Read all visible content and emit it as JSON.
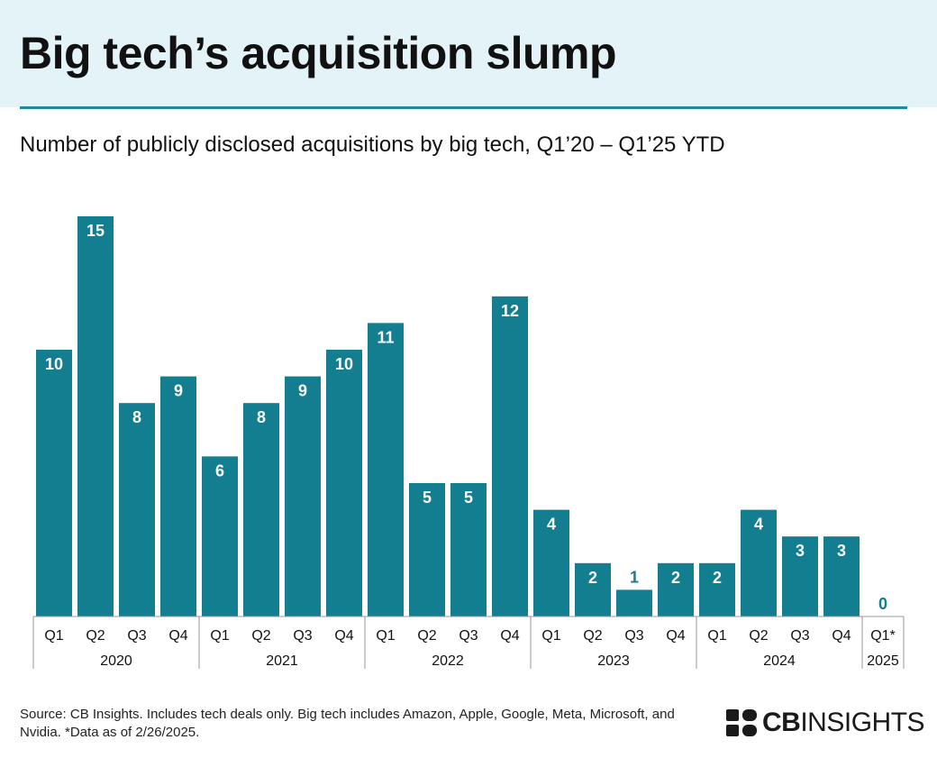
{
  "header": {
    "title": "Big tech’s acquisition slump",
    "subtitle": "Number of publicly disclosed acquisitions by big tech, Q1’20 – Q1’25 YTD"
  },
  "footer": {
    "source": "Source: CB Insights. Includes tech deals only. Big tech includes Amazon, Apple, Google, Meta, Microsoft, and Nvidia. *Data as of 2/26/2025."
  },
  "logo": {
    "bold": "CB",
    "rest": "INSIGHTS"
  },
  "colors": {
    "bar": "#127e90",
    "header_bg": "#e3f3f8",
    "rule": "#1d8aa0"
  },
  "chart_data": {
    "type": "bar",
    "categories": [
      "Q1",
      "Q2",
      "Q3",
      "Q4",
      "Q1",
      "Q2",
      "Q3",
      "Q4",
      "Q1",
      "Q2",
      "Q3",
      "Q4",
      "Q1",
      "Q2",
      "Q3",
      "Q4",
      "Q1",
      "Q2",
      "Q3",
      "Q4",
      "Q1*"
    ],
    "groups": [
      {
        "label": "2020",
        "count": 4
      },
      {
        "label": "2021",
        "count": 4
      },
      {
        "label": "2022",
        "count": 4
      },
      {
        "label": "2023",
        "count": 4
      },
      {
        "label": "2024",
        "count": 4
      },
      {
        "label": "2025",
        "count": 1
      }
    ],
    "values": [
      10,
      15,
      8,
      9,
      6,
      8,
      9,
      10,
      11,
      5,
      5,
      12,
      4,
      2,
      1,
      2,
      2,
      4,
      3,
      3,
      0
    ],
    "ylim": [
      0,
      15
    ],
    "grid": false,
    "legend": "none"
  }
}
